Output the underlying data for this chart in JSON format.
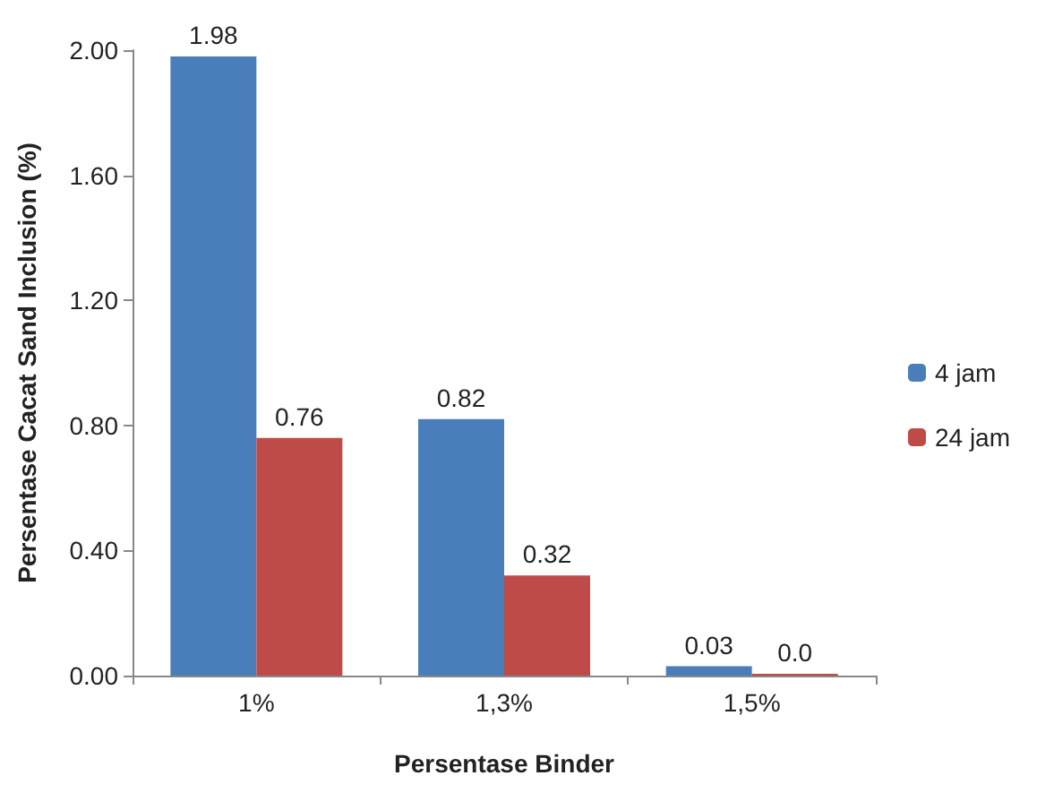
{
  "chart_data": {
    "type": "bar",
    "xlabel": "Persentase Binder",
    "ylabel": "Persentase Cacat Sand Inclusion (%)",
    "categories": [
      "1%",
      "1,3%",
      "1,5%"
    ],
    "series": [
      {
        "name": "4 jam",
        "color": "#4a7ebb",
        "values": [
          1.98,
          0.82,
          0.03
        ],
        "value_labels": [
          "1.98",
          "0.82",
          "0.03"
        ]
      },
      {
        "name": "24 jam",
        "color": "#be4b48",
        "values": [
          0.76,
          0.32,
          0
        ],
        "value_labels": [
          "0.76",
          "0.32",
          "0.0"
        ]
      }
    ],
    "ylim": [
      0,
      2
    ],
    "yticks": [
      {
        "value": 0,
        "label": "0.00"
      },
      {
        "value": 0.4,
        "label": "0.40"
      },
      {
        "value": 0.8,
        "label": "0.80"
      },
      {
        "value": 1.2,
        "label": "1.20"
      },
      {
        "value": 1.6,
        "label": "1.60"
      },
      {
        "value": 2,
        "label": "2.00"
      }
    ],
    "grid": false,
    "legend": "right"
  }
}
